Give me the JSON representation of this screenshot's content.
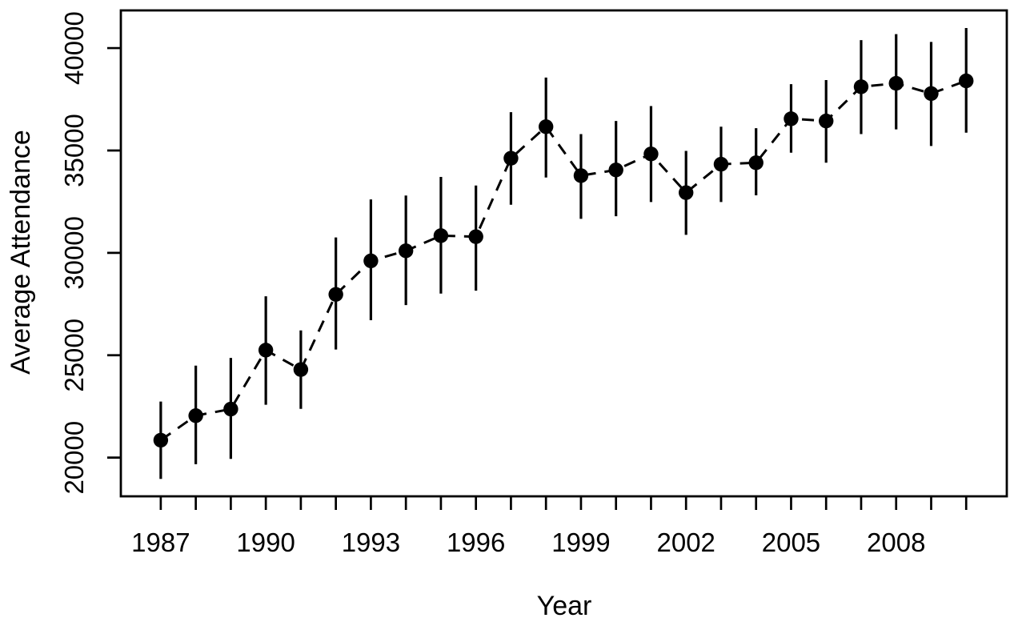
{
  "figure": {
    "background": "#ffffff",
    "foreground": "#000000"
  },
  "chart_data": {
    "type": "line",
    "title": "",
    "xlabel": "Year",
    "ylabel": "Average Attendance",
    "grid": false,
    "legend": null,
    "marker": "filled-circle",
    "line_style": "dashed",
    "color": "#000000",
    "xlim": [
      1985.86,
      2011.16
    ],
    "ylim": [
      18110,
      41840
    ],
    "y_ticks": [
      20000,
      25000,
      30000,
      35000,
      40000
    ],
    "x_tick_labels": [
      1987,
      1990,
      1993,
      1996,
      1999,
      2002,
      2005,
      2008
    ],
    "series": [
      {
        "name": "Average Attendance",
        "points": [
          {
            "year": 1987,
            "value": 20850,
            "lower": 18960,
            "upper": 22740
          },
          {
            "year": 1988,
            "value": 22050,
            "lower": 19680,
            "upper": 24490
          },
          {
            "year": 1989,
            "value": 22370,
            "lower": 19940,
            "upper": 24870
          },
          {
            "year": 1990,
            "value": 25250,
            "lower": 22580,
            "upper": 27880
          },
          {
            "year": 1991,
            "value": 24300,
            "lower": 22380,
            "upper": 26210
          },
          {
            "year": 1992,
            "value": 27970,
            "lower": 25280,
            "upper": 30750
          },
          {
            "year": 1993,
            "value": 29610,
            "lower": 26710,
            "upper": 32610
          },
          {
            "year": 1994,
            "value": 30100,
            "lower": 27450,
            "upper": 32800
          },
          {
            "year": 1995,
            "value": 30840,
            "lower": 28010,
            "upper": 33710
          },
          {
            "year": 1996,
            "value": 30790,
            "lower": 28150,
            "upper": 33290
          },
          {
            "year": 1997,
            "value": 34620,
            "lower": 32350,
            "upper": 36870
          },
          {
            "year": 1998,
            "value": 36160,
            "lower": 33680,
            "upper": 38560
          },
          {
            "year": 1999,
            "value": 33770,
            "lower": 31660,
            "upper": 35800
          },
          {
            "year": 2000,
            "value": 34050,
            "lower": 31790,
            "upper": 36440
          },
          {
            "year": 2001,
            "value": 34830,
            "lower": 32480,
            "upper": 37170
          },
          {
            "year": 2002,
            "value": 32940,
            "lower": 30880,
            "upper": 34980
          },
          {
            "year": 2003,
            "value": 34330,
            "lower": 32480,
            "upper": 36160
          },
          {
            "year": 2004,
            "value": 34400,
            "lower": 32810,
            "upper": 36090
          },
          {
            "year": 2005,
            "value": 36550,
            "lower": 34890,
            "upper": 38240
          },
          {
            "year": 2006,
            "value": 36440,
            "lower": 34400,
            "upper": 38440
          },
          {
            "year": 2007,
            "value": 38110,
            "lower": 35800,
            "upper": 40390
          },
          {
            "year": 2008,
            "value": 38280,
            "lower": 36030,
            "upper": 40680
          },
          {
            "year": 2009,
            "value": 37780,
            "lower": 35220,
            "upper": 40300
          },
          {
            "year": 2010,
            "value": 38400,
            "lower": 35870,
            "upper": 40980
          }
        ]
      }
    ]
  }
}
